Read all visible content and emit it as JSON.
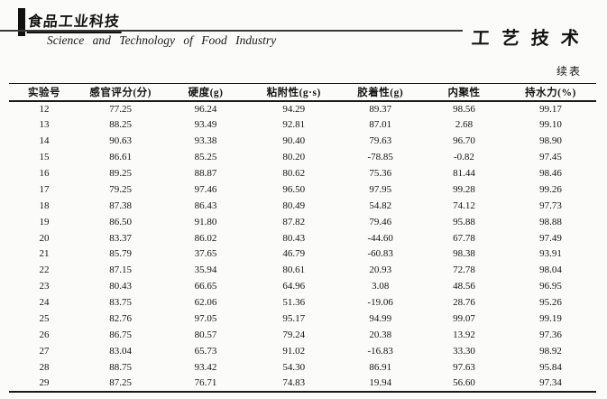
{
  "header": {
    "journal_logo_cn": "食品工业科技",
    "journal_name_en": "Science and Technology of Food Industry",
    "section_title": "工艺技术"
  },
  "table": {
    "continued_label": "续表",
    "columns": [
      "实验号",
      "感官评分(分)",
      "硬度(g)",
      "粘附性(g·s)",
      "胶着性(g)",
      "内聚性",
      "持水力(%)"
    ],
    "rows": [
      [
        "12",
        "77.25",
        "96.24",
        "94.29",
        "89.37",
        "98.56",
        "99.17"
      ],
      [
        "13",
        "88.25",
        "93.49",
        "92.81",
        "87.01",
        "2.68",
        "99.10"
      ],
      [
        "14",
        "90.63",
        "93.38",
        "90.40",
        "79.63",
        "96.70",
        "98.90"
      ],
      [
        "15",
        "86.61",
        "85.25",
        "80.20",
        "-78.85",
        "-0.82",
        "97.45"
      ],
      [
        "16",
        "89.25",
        "88.87",
        "80.62",
        "75.36",
        "81.44",
        "98.46"
      ],
      [
        "17",
        "79.25",
        "97.46",
        "96.50",
        "97.95",
        "99.28",
        "99.26"
      ],
      [
        "18",
        "87.38",
        "86.43",
        "80.49",
        "54.82",
        "74.12",
        "97.73"
      ],
      [
        "19",
        "86.50",
        "91.80",
        "87.82",
        "79.46",
        "95.88",
        "98.88"
      ],
      [
        "20",
        "83.37",
        "86.02",
        "80.43",
        "-44.60",
        "67.78",
        "97.49"
      ],
      [
        "21",
        "85.79",
        "37.65",
        "46.79",
        "-60.83",
        "98.38",
        "93.91"
      ],
      [
        "22",
        "87.15",
        "35.94",
        "80.61",
        "20.93",
        "72.78",
        "98.04"
      ],
      [
        "23",
        "80.43",
        "66.65",
        "64.96",
        "3.08",
        "48.56",
        "96.95"
      ],
      [
        "24",
        "83.75",
        "62.06",
        "51.36",
        "-19.06",
        "28.76",
        "95.26"
      ],
      [
        "25",
        "82.76",
        "97.05",
        "95.17",
        "94.99",
        "99.07",
        "99.19"
      ],
      [
        "26",
        "86.75",
        "80.57",
        "79.24",
        "20.38",
        "13.92",
        "97.36"
      ],
      [
        "27",
        "83.04",
        "65.73",
        "91.02",
        "-16.83",
        "33.30",
        "98.92"
      ],
      [
        "28",
        "88.75",
        "93.42",
        "54.30",
        "86.91",
        "97.63",
        "95.84"
      ],
      [
        "29",
        "87.25",
        "76.71",
        "74.83",
        "19.94",
        "56.60",
        "97.34"
      ]
    ]
  }
}
